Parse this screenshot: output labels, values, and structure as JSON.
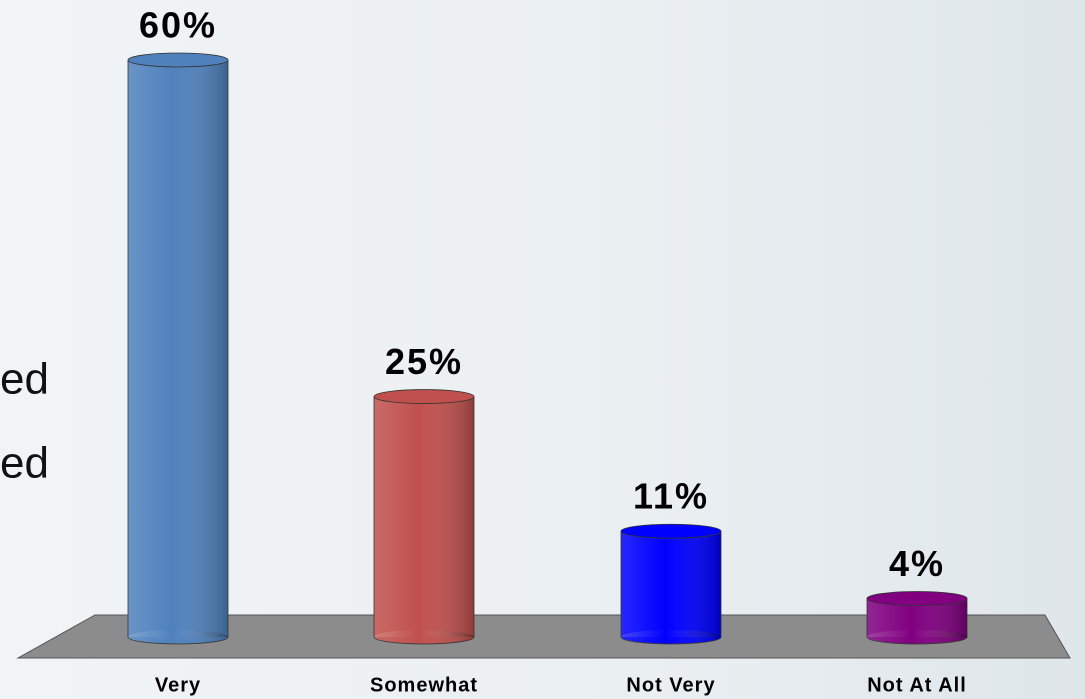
{
  "chart_data": {
    "type": "bar",
    "categories": [
      "Very",
      "Somewhat",
      "Not Very",
      "Not At All"
    ],
    "values": [
      60,
      25,
      11,
      4
    ],
    "value_labels": [
      "60%",
      "25%",
      "11%",
      "4%"
    ],
    "colors": [
      "#4f81bd",
      "#c0504d",
      "#0000ff",
      "#800080"
    ],
    "annotations": [
      "ed",
      "ed"
    ]
  }
}
